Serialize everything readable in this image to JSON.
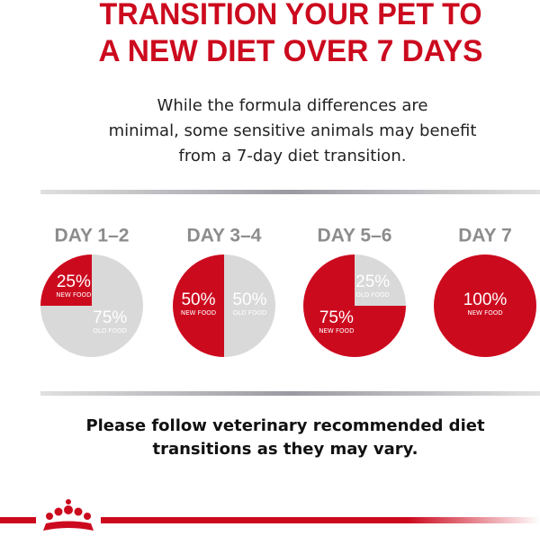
{
  "header": {
    "title_lines": [
      "TRANSITION YOUR PET TO",
      "A NEW DIET OVER 7 DAYS"
    ],
    "subtitle_lines": [
      "While the formula differences are",
      "minimal, some sensitive animals may benefit",
      "from a 7-day diet transition."
    ]
  },
  "chart_data": [
    {
      "type": "pie",
      "title": "DAY 1–2",
      "categories": [
        "OLD FOOD",
        "NEW FOOD"
      ],
      "values": [
        75,
        25
      ],
      "value_labels": [
        "75%",
        "25%"
      ],
      "colors": [
        "#d9d9d9",
        "#cc0a1e"
      ]
    },
    {
      "type": "pie",
      "title": "DAY 3–4",
      "categories": [
        "OLD FOOD",
        "NEW FOOD"
      ],
      "values": [
        50,
        50
      ],
      "value_labels": [
        "50%",
        "50%"
      ],
      "colors": [
        "#d9d9d9",
        "#cc0a1e"
      ]
    },
    {
      "type": "pie",
      "title": "DAY 5–6",
      "categories": [
        "OLD FOOD",
        "NEW FOOD"
      ],
      "values": [
        25,
        75
      ],
      "value_labels": [
        "25%",
        "75%"
      ],
      "colors": [
        "#d9d9d9",
        "#cc0a1e"
      ]
    },
    {
      "type": "pie",
      "title": "DAY 7",
      "categories": [
        "NEW FOOD"
      ],
      "values": [
        100
      ],
      "value_labels": [
        "100%"
      ],
      "colors": [
        "#cc0a1e"
      ]
    }
  ],
  "footer": {
    "lines": [
      "Please follow veterinary recommended diet",
      "transitions as they may vary."
    ]
  }
}
